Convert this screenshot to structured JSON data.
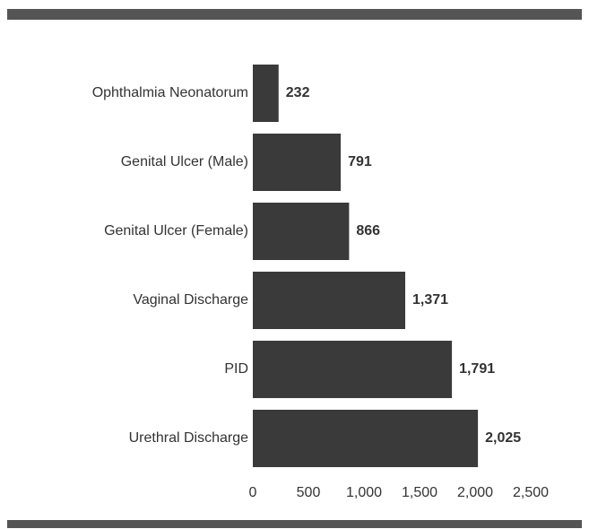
{
  "chart_data": {
    "type": "bar",
    "orientation": "horizontal",
    "categories": [
      "Ophthalmia Neonatorum",
      "Genital Ulcer (Male)",
      "Genital Ulcer (Female)",
      "Vaginal Discharge",
      "PID",
      "Urethral Discharge"
    ],
    "values": [
      232,
      791,
      866,
      1371,
      1791,
      2025
    ],
    "value_labels": [
      "232",
      "791",
      "866",
      "1,371",
      "1,791",
      "2,025"
    ],
    "color": "#3a3a3a",
    "xlim": [
      0,
      2500
    ],
    "xticks": [
      0,
      500,
      {
        "value": 1000,
        "label": "1,000"
      },
      {
        "value": 1500,
        "label": "1,500"
      },
      {
        "value": 2000,
        "label": "2,000"
      },
      {
        "value": 2500,
        "label": "2,500"
      }
    ]
  }
}
